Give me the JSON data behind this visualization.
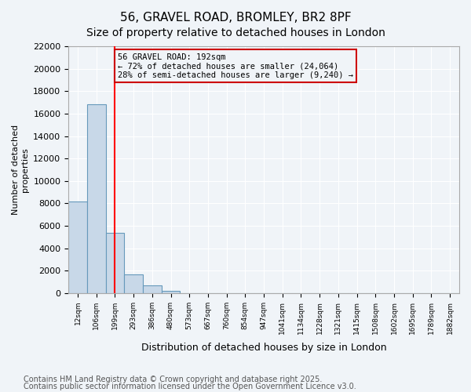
{
  "title": "56, GRAVEL ROAD, BROMLEY, BR2 8PF",
  "subtitle": "Size of property relative to detached houses in London",
  "xlabel": "Distribution of detached houses by size in London",
  "bar_values": [
    8200,
    16800,
    5400,
    1700,
    700,
    200,
    0,
    0,
    0,
    0,
    0,
    0,
    0,
    0,
    0,
    0,
    0,
    0,
    0,
    0,
    0
  ],
  "bar_labels": [
    "12sqm",
    "106sqm",
    "199sqm",
    "293sqm",
    "386sqm",
    "480sqm",
    "573sqm",
    "667sqm",
    "760sqm",
    "854sqm",
    "947sqm",
    "1041sqm",
    "1134sqm",
    "1228sqm",
    "1321sqm",
    "1415sqm",
    "1508sqm",
    "1602sqm",
    "1695sqm",
    "1789sqm",
    "1882sqm"
  ],
  "bar_color": "#c8d8e8",
  "bar_edgecolor": "#6699bb",
  "red_line_x": 2,
  "annotation_text": "56 GRAVEL ROAD: 192sqm\n← 72% of detached houses are smaller (24,064)\n28% of semi-detached houses are larger (9,240) →",
  "annotation_box_color": "#cc0000",
  "ylim": [
    0,
    22000
  ],
  "yticks": [
    0,
    2000,
    4000,
    6000,
    8000,
    10000,
    12000,
    14000,
    16000,
    18000,
    20000,
    22000
  ],
  "background_color": "#f0f4f8",
  "grid_color": "#ffffff",
  "footer_line1": "Contains HM Land Registry data © Crown copyright and database right 2025.",
  "footer_line2": "Contains public sector information licensed under the Open Government Licence v3.0.",
  "title_fontsize": 11,
  "subtitle_fontsize": 10,
  "annotation_fontsize": 7.5,
  "footer_fontsize": 7
}
